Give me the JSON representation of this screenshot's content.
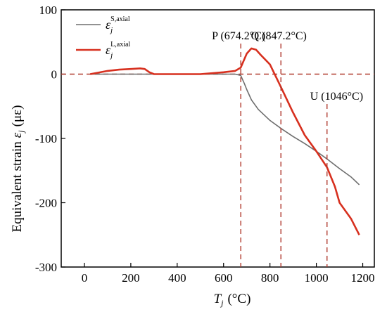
{
  "chart_data": {
    "type": "line",
    "title": "",
    "xlabel": {
      "symbol": "T",
      "subscript": "j",
      "unit": "(°C)"
    },
    "ylabel": {
      "text": "Equivalent strain",
      "symbol": "ε",
      "subscript": "j",
      "unit": "(με)"
    },
    "xlim": [
      -100,
      1250
    ],
    "ylim": [
      -300,
      100
    ],
    "xticks": [
      0,
      200,
      400,
      600,
      800,
      1000,
      1200
    ],
    "yticks": [
      -300,
      -200,
      -100,
      0,
      100
    ],
    "legend_position": "top-left",
    "series": [
      {
        "name_symbol": "ε",
        "name_sub": "j",
        "name_sup": "S,axial",
        "color": "#6e6e6e",
        "x": [
          25,
          100,
          200,
          300,
          400,
          500,
          600,
          650,
          674,
          690,
          700,
          720,
          750,
          800,
          850,
          900,
          950,
          1000,
          1050,
          1100,
          1150,
          1185
        ],
        "y": [
          0,
          0,
          0,
          0,
          0,
          0,
          0,
          0,
          -2,
          -15,
          -24,
          -40,
          -55,
          -72,
          -85,
          -97,
          -108,
          -120,
          -133,
          -147,
          -160,
          -172
        ]
      },
      {
        "name_symbol": "ε",
        "name_sub": "j",
        "name_sup": "L,axial",
        "color": "#d7301f",
        "x": [
          25,
          100,
          150,
          200,
          240,
          260,
          280,
          300,
          400,
          500,
          600,
          650,
          674,
          700,
          720,
          740,
          760,
          800,
          847,
          900,
          950,
          1000,
          1046,
          1080,
          1100,
          1150,
          1185
        ],
        "y": [
          0,
          5,
          7,
          8,
          9,
          8,
          3,
          0,
          0,
          0,
          3,
          5,
          10,
          32,
          40,
          38,
          30,
          15,
          -20,
          -60,
          -95,
          -120,
          -145,
          -175,
          -200,
          -225,
          -250
        ]
      }
    ],
    "reference_lines": {
      "horizontal_y": 0,
      "vertical": [
        {
          "x": 674.2,
          "label": "P (674.2°C)"
        },
        {
          "x": 847.2,
          "label": "Q (847.2°C)"
        },
        {
          "x": 1046,
          "label": "U (1046°C)"
        }
      ],
      "color": "#b03a2e"
    }
  }
}
